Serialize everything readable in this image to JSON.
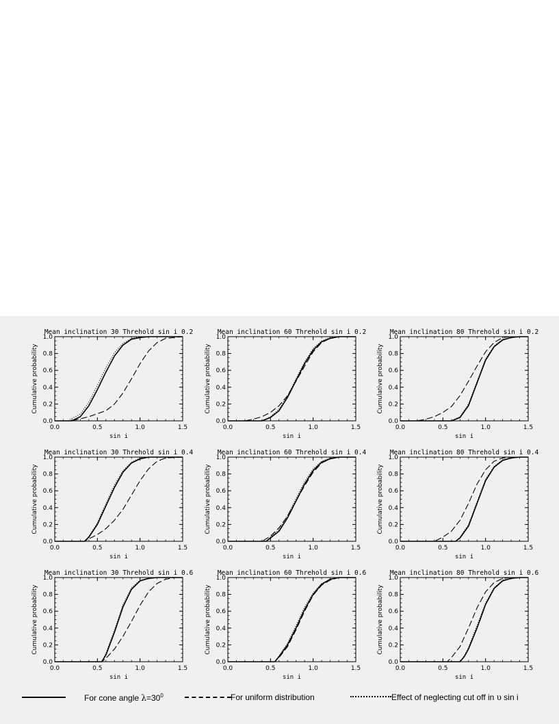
{
  "colors": {
    "background": "#ffffff",
    "figure_band": "#f0f0f0",
    "ink": "#000000"
  },
  "chart_data": [
    {
      "type": "line",
      "title": "Mean inclination 30   Threhold sin i   0.2",
      "xlabel": "sin i",
      "ylabel": "Cumulative probability",
      "xlim": [
        0,
        1.5
      ],
      "ylim": [
        0,
        1
      ],
      "x_ticks": [
        "0.0",
        "0.5",
        "1.0",
        "1.5"
      ],
      "y_ticks": [
        "0.0",
        "0.2",
        "0.4",
        "0.6",
        "0.8",
        "1.0"
      ],
      "series": [
        {
          "style": "solid",
          "x": [
            0,
            0.2,
            0.3,
            0.4,
            0.5,
            0.6,
            0.7,
            0.8,
            0.9,
            1.0,
            1.1,
            1.2,
            1.5
          ],
          "y": [
            0,
            0,
            0.05,
            0.18,
            0.37,
            0.58,
            0.77,
            0.9,
            0.97,
            0.99,
            1,
            1,
            1
          ]
        },
        {
          "style": "dashed",
          "x": [
            0,
            0.2,
            0.4,
            0.6,
            0.7,
            0.8,
            0.9,
            1.0,
            1.1,
            1.2,
            1.3,
            1.5
          ],
          "y": [
            0,
            0,
            0.05,
            0.12,
            0.2,
            0.33,
            0.5,
            0.68,
            0.83,
            0.93,
            0.98,
            1
          ]
        },
        {
          "style": "dotted",
          "x": [
            0,
            0.15,
            0.3,
            0.4,
            0.5,
            0.6,
            0.7,
            0.8,
            0.9,
            1.0,
            1.1,
            1.5
          ],
          "y": [
            0,
            0,
            0.08,
            0.22,
            0.42,
            0.63,
            0.81,
            0.92,
            0.98,
            1,
            1,
            1
          ]
        }
      ]
    },
    {
      "type": "line",
      "title": "Mean inclination 60   Threhold sin i   0.2",
      "xlabel": "sin i",
      "ylabel": "Cumulative probability",
      "xlim": [
        0,
        1.5
      ],
      "ylim": [
        0,
        1
      ],
      "x_ticks": [
        "0.0",
        "0.5",
        "1.0",
        "1.5"
      ],
      "y_ticks": [
        "0.0",
        "0.2",
        "0.4",
        "0.6",
        "0.8",
        "1.0"
      ],
      "series": [
        {
          "style": "solid",
          "x": [
            0,
            0.4,
            0.5,
            0.6,
            0.7,
            0.8,
            0.9,
            1.0,
            1.1,
            1.2,
            1.3,
            1.5
          ],
          "y": [
            0,
            0,
            0.04,
            0.12,
            0.28,
            0.48,
            0.68,
            0.84,
            0.94,
            0.98,
            1,
            1
          ]
        },
        {
          "style": "dashed",
          "x": [
            0,
            0.2,
            0.3,
            0.4,
            0.5,
            0.6,
            0.7,
            0.8,
            0.9,
            1.0,
            1.1,
            1.2,
            1.3,
            1.5
          ],
          "y": [
            0,
            0,
            0.02,
            0.05,
            0.1,
            0.18,
            0.3,
            0.47,
            0.65,
            0.82,
            0.93,
            0.98,
            1,
            1
          ]
        },
        {
          "style": "dotted",
          "x": [
            0,
            0.4,
            0.5,
            0.6,
            0.7,
            0.8,
            0.9,
            1.0,
            1.1,
            1.2,
            1.3,
            1.5
          ],
          "y": [
            0,
            0,
            0.05,
            0.14,
            0.3,
            0.5,
            0.7,
            0.86,
            0.95,
            0.99,
            1,
            1
          ]
        }
      ]
    },
    {
      "type": "line",
      "title": "Mean inclination 80   Threhold sin i   0.2",
      "xlabel": "sin i",
      "ylabel": "Cumulative probability",
      "xlim": [
        0,
        1.5
      ],
      "ylim": [
        0,
        1
      ],
      "x_ticks": [
        "0.0",
        "0.5",
        "1.0",
        "1.5"
      ],
      "y_ticks": [
        "0.0",
        "0.2",
        "0.4",
        "0.6",
        "0.8",
        "1.0"
      ],
      "series": [
        {
          "style": "solid",
          "x": [
            0,
            0.6,
            0.7,
            0.8,
            0.9,
            1.0,
            1.1,
            1.2,
            1.3,
            1.4,
            1.5
          ],
          "y": [
            0,
            0,
            0.04,
            0.18,
            0.45,
            0.72,
            0.88,
            0.96,
            0.99,
            1,
            1
          ]
        },
        {
          "style": "dashed",
          "x": [
            0,
            0.2,
            0.3,
            0.4,
            0.5,
            0.6,
            0.7,
            0.8,
            0.9,
            1.0,
            1.1,
            1.2,
            1.3,
            1.5
          ],
          "y": [
            0,
            0,
            0.02,
            0.05,
            0.1,
            0.17,
            0.3,
            0.47,
            0.65,
            0.82,
            0.93,
            0.99,
            1,
            1
          ]
        },
        {
          "style": "dotted",
          "x": [
            0,
            0.6,
            0.7,
            0.8,
            0.9,
            1.0,
            1.1,
            1.2,
            1.3,
            1.4,
            1.5
          ],
          "y": [
            0,
            0,
            0.05,
            0.2,
            0.47,
            0.74,
            0.89,
            0.97,
            0.99,
            1,
            1
          ]
        }
      ]
    },
    {
      "type": "line",
      "title": "Mean inclination 30   Threhold sin i   0.4",
      "xlabel": "sin i",
      "ylabel": "Cumulative probability",
      "xlim": [
        0,
        1.5
      ],
      "ylim": [
        0,
        1
      ],
      "x_ticks": [
        "0.0",
        "0.5",
        "1.0",
        "1.5"
      ],
      "y_ticks": [
        "0.0",
        "0.2",
        "0.4",
        "0.6",
        "0.8",
        "1.0"
      ],
      "series": [
        {
          "style": "solid",
          "x": [
            0,
            0.35,
            0.4,
            0.5,
            0.6,
            0.7,
            0.8,
            0.9,
            1.0,
            1.1,
            1.2,
            1.5
          ],
          "y": [
            0,
            0,
            0.05,
            0.2,
            0.42,
            0.64,
            0.82,
            0.93,
            0.98,
            1,
            1,
            1
          ]
        },
        {
          "style": "dashed",
          "x": [
            0,
            0.35,
            0.4,
            0.5,
            0.6,
            0.7,
            0.8,
            0.9,
            1.0,
            1.1,
            1.2,
            1.3,
            1.5
          ],
          "y": [
            0,
            0,
            0.03,
            0.08,
            0.15,
            0.25,
            0.38,
            0.55,
            0.72,
            0.86,
            0.95,
            0.99,
            1
          ]
        },
        {
          "style": "dotted",
          "x": [
            0,
            0.35,
            0.4,
            0.5,
            0.6,
            0.7,
            0.8,
            0.9,
            1.0,
            1.1,
            1.2,
            1.5
          ],
          "y": [
            0,
            0,
            0.06,
            0.22,
            0.45,
            0.67,
            0.84,
            0.94,
            0.99,
            1,
            1,
            1
          ]
        }
      ]
    },
    {
      "type": "line",
      "title": "Mean inclination 60   Threhold sin i   0.4",
      "xlabel": "sin i",
      "ylabel": "Cumulative probability",
      "xlim": [
        0,
        1.5
      ],
      "ylim": [
        0,
        1
      ],
      "x_ticks": [
        "0.0",
        "0.5",
        "1.0",
        "1.5"
      ],
      "y_ticks": [
        "0.0",
        "0.2",
        "0.4",
        "0.6",
        "0.8",
        "1.0"
      ],
      "series": [
        {
          "style": "solid",
          "x": [
            0,
            0.45,
            0.5,
            0.6,
            0.7,
            0.8,
            0.9,
            1.0,
            1.1,
            1.2,
            1.3,
            1.5
          ],
          "y": [
            0,
            0,
            0.04,
            0.12,
            0.28,
            0.48,
            0.68,
            0.84,
            0.94,
            0.98,
            1,
            1
          ]
        },
        {
          "style": "dashed",
          "x": [
            0,
            0.4,
            0.5,
            0.6,
            0.7,
            0.8,
            0.9,
            1.0,
            1.1,
            1.2,
            1.3,
            1.5
          ],
          "y": [
            0,
            0,
            0.06,
            0.16,
            0.3,
            0.48,
            0.66,
            0.82,
            0.93,
            0.98,
            1,
            1
          ]
        },
        {
          "style": "dotted",
          "x": [
            0,
            0.45,
            0.5,
            0.6,
            0.7,
            0.8,
            0.9,
            1.0,
            1.1,
            1.2,
            1.3,
            1.5
          ],
          "y": [
            0,
            0,
            0.05,
            0.14,
            0.31,
            0.51,
            0.71,
            0.86,
            0.95,
            0.99,
            1,
            1
          ]
        }
      ]
    },
    {
      "type": "line",
      "title": "Mean inclination 80   Threhold sin i   0.4",
      "xlabel": "sin i",
      "ylabel": "Cumulative probability",
      "xlim": [
        0,
        1.5
      ],
      "ylim": [
        0,
        1
      ],
      "x_ticks": [
        "0.0",
        "0.5",
        "1.0",
        "1.5"
      ],
      "y_ticks": [
        "0.0",
        "0.2",
        "0.4",
        "0.6",
        "0.8",
        "1.0"
      ],
      "series": [
        {
          "style": "solid",
          "x": [
            0,
            0.65,
            0.7,
            0.8,
            0.9,
            1.0,
            1.1,
            1.2,
            1.3,
            1.4,
            1.5
          ],
          "y": [
            0,
            0,
            0.04,
            0.18,
            0.45,
            0.72,
            0.88,
            0.96,
            0.99,
            1,
            1
          ]
        },
        {
          "style": "dashed",
          "x": [
            0,
            0.4,
            0.5,
            0.6,
            0.7,
            0.8,
            0.9,
            1.0,
            1.1,
            1.2,
            1.3,
            1.5
          ],
          "y": [
            0,
            0,
            0.05,
            0.12,
            0.25,
            0.45,
            0.68,
            0.85,
            0.95,
            0.99,
            1,
            1
          ]
        },
        {
          "style": "dotted",
          "x": [
            0,
            0.65,
            0.7,
            0.8,
            0.9,
            1.0,
            1.1,
            1.2,
            1.3,
            1.4,
            1.5
          ],
          "y": [
            0,
            0,
            0.05,
            0.2,
            0.47,
            0.74,
            0.89,
            0.97,
            0.99,
            1,
            1
          ]
        }
      ]
    },
    {
      "type": "line",
      "title": "Mean inclination 30   Threhold sin i   0.6",
      "xlabel": "sin i",
      "ylabel": "Cumulative probability",
      "xlim": [
        0,
        1.5
      ],
      "ylim": [
        0,
        1
      ],
      "x_ticks": [
        "0.0",
        "0.5",
        "1.0",
        "1.5"
      ],
      "y_ticks": [
        "0.0",
        "0.2",
        "0.4",
        "0.6",
        "0.8",
        "1.0"
      ],
      "series": [
        {
          "style": "solid",
          "x": [
            0,
            0.55,
            0.6,
            0.7,
            0.8,
            0.9,
            1.0,
            1.1,
            1.2,
            1.3,
            1.5
          ],
          "y": [
            0,
            0,
            0.08,
            0.35,
            0.65,
            0.86,
            0.96,
            0.99,
            1,
            1,
            1
          ]
        },
        {
          "style": "dashed",
          "x": [
            0,
            0.55,
            0.6,
            0.7,
            0.8,
            0.9,
            1.0,
            1.1,
            1.2,
            1.3,
            1.4,
            1.5
          ],
          "y": [
            0,
            0,
            0.04,
            0.15,
            0.3,
            0.48,
            0.67,
            0.83,
            0.93,
            0.98,
            1,
            1
          ]
        },
        {
          "style": "dotted",
          "x": [
            0,
            0.55,
            0.6,
            0.7,
            0.8,
            0.9,
            1.0,
            1.1,
            1.2,
            1.3,
            1.5
          ],
          "y": [
            0,
            0,
            0.1,
            0.38,
            0.68,
            0.88,
            0.97,
            0.99,
            1,
            1,
            1
          ]
        }
      ]
    },
    {
      "type": "line",
      "title": "Mean inclination 60   Threhold sin i   0.6",
      "xlabel": "sin i",
      "ylabel": "Cumulative probability",
      "xlim": [
        0,
        1.5
      ],
      "ylim": [
        0,
        1
      ],
      "x_ticks": [
        "0.0",
        "0.5",
        "1.0",
        "1.5"
      ],
      "y_ticks": [
        "0.0",
        "0.2",
        "0.4",
        "0.6",
        "0.8",
        "1.0"
      ],
      "series": [
        {
          "style": "solid",
          "x": [
            0,
            0.55,
            0.6,
            0.7,
            0.8,
            0.9,
            1.0,
            1.1,
            1.2,
            1.3,
            1.5
          ],
          "y": [
            0,
            0,
            0.06,
            0.2,
            0.4,
            0.62,
            0.8,
            0.92,
            0.98,
            1,
            1
          ]
        },
        {
          "style": "dashed",
          "x": [
            0,
            0.55,
            0.6,
            0.7,
            0.8,
            0.9,
            1.0,
            1.1,
            1.2,
            1.3,
            1.5
          ],
          "y": [
            0,
            0,
            0.05,
            0.18,
            0.38,
            0.6,
            0.79,
            0.91,
            0.97,
            1,
            1
          ]
        },
        {
          "style": "dotted",
          "x": [
            0,
            0.55,
            0.6,
            0.7,
            0.8,
            0.9,
            1.0,
            1.1,
            1.2,
            1.3,
            1.5
          ],
          "y": [
            0,
            0,
            0.07,
            0.22,
            0.43,
            0.65,
            0.82,
            0.93,
            0.98,
            1,
            1
          ]
        }
      ]
    },
    {
      "type": "line",
      "title": "Mean inclination 80   Threhold sin i   0.6",
      "xlabel": "sin i",
      "ylabel": "Cumulative probability",
      "xlim": [
        0,
        1.5
      ],
      "ylim": [
        0,
        1
      ],
      "x_ticks": [
        "0.0",
        "0.5",
        "1.0",
        "1.5"
      ],
      "y_ticks": [
        "0.0",
        "0.2",
        "0.4",
        "0.6",
        "0.8",
        "1.0"
      ],
      "series": [
        {
          "style": "solid",
          "x": [
            0,
            0.7,
            0.75,
            0.8,
            0.9,
            1.0,
            1.1,
            1.2,
            1.3,
            1.4,
            1.5
          ],
          "y": [
            0,
            0,
            0.06,
            0.15,
            0.4,
            0.68,
            0.87,
            0.96,
            0.99,
            1,
            1
          ]
        },
        {
          "style": "dashed",
          "x": [
            0,
            0.55,
            0.6,
            0.7,
            0.8,
            0.9,
            1.0,
            1.1,
            1.2,
            1.3,
            1.5
          ],
          "y": [
            0,
            0,
            0.05,
            0.18,
            0.4,
            0.64,
            0.83,
            0.94,
            0.99,
            1,
            1
          ]
        },
        {
          "style": "dotted",
          "x": [
            0,
            0.7,
            0.75,
            0.8,
            0.9,
            1.0,
            1.1,
            1.2,
            1.3,
            1.4,
            1.5
          ],
          "y": [
            0,
            0,
            0.07,
            0.17,
            0.43,
            0.7,
            0.88,
            0.97,
            0.99,
            1,
            1
          ]
        }
      ]
    }
  ],
  "legend": {
    "solid_label": "For cone angle ",
    "lambda": "λ",
    "eq": "=30",
    "sup": "0",
    "dashed_label": "For uniform distribution",
    "dotted_label": "Effect of neglecting cut off in ",
    "upsilon": "υ",
    "sini": " sin i"
  }
}
